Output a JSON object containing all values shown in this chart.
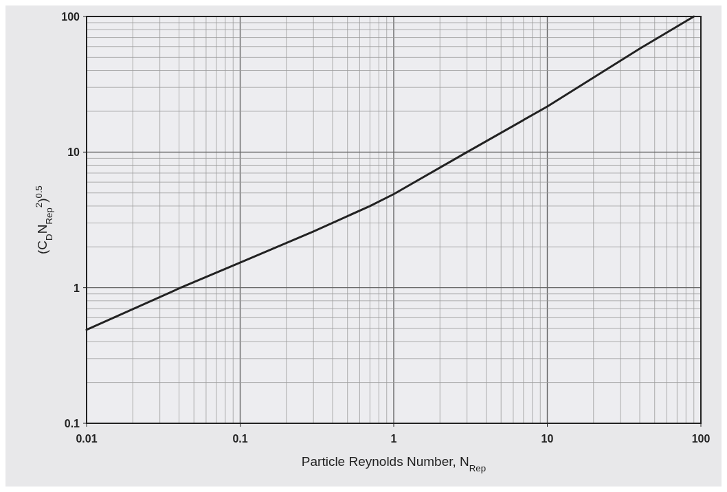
{
  "chart_data": {
    "type": "line",
    "xlabel": "Particle Reynolds Number, N$_{Rep}$",
    "ylabel": "(C$_{D}$N$_{Rep}$$^{2}$)$^{0.5}$",
    "log": "xy",
    "grid": true,
    "marker": "none",
    "line_style": "solid",
    "xlim": [
      0.01,
      100
    ],
    "ylim": [
      0.1,
      100
    ],
    "xticks": [
      0.01,
      {
        "value": 0.02,
        "label": null
      },
      {
        "value": 0.03,
        "label": null
      },
      {
        "value": 0.04,
        "label": null
      },
      {
        "value": 0.05,
        "label": null
      },
      {
        "value": 0.06,
        "label": null
      },
      {
        "value": 0.07,
        "label": null
      },
      {
        "value": 0.08,
        "label": null
      },
      {
        "value": 0.09,
        "label": null
      },
      0.1,
      {
        "value": 0.2,
        "label": null
      },
      {
        "value": 0.3,
        "label": null
      },
      {
        "value": 0.4,
        "label": null
      },
      {
        "value": 0.5,
        "label": null
      },
      {
        "value": 0.6,
        "label": null
      },
      {
        "value": 0.7,
        "label": null
      },
      {
        "value": 0.8,
        "label": null
      },
      {
        "value": 0.9,
        "label": null
      },
      1,
      {
        "value": 2,
        "label": null
      },
      {
        "value": 3,
        "label": null
      },
      {
        "value": 4,
        "label": null
      },
      {
        "value": 5,
        "label": null
      },
      {
        "value": 6,
        "label": null
      },
      {
        "value": 7,
        "label": null
      },
      {
        "value": 8,
        "label": null
      },
      {
        "value": 9,
        "label": null
      },
      10,
      {
        "value": 20,
        "label": null
      },
      {
        "value": 30,
        "label": null
      },
      {
        "value": 40,
        "label": null
      },
      {
        "value": 50,
        "label": null
      },
      {
        "value": 60,
        "label": null
      },
      {
        "value": 70,
        "label": null
      },
      {
        "value": 80,
        "label": null
      },
      {
        "value": 90,
        "label": null
      },
      100
    ],
    "yticks": [
      0.1,
      {
        "value": 0.2,
        "label": null
      },
      {
        "value": 0.3,
        "label": null
      },
      {
        "value": 0.4,
        "label": null
      },
      {
        "value": 0.5,
        "label": null
      },
      {
        "value": 0.6,
        "label": null
      },
      {
        "value": 0.7,
        "label": null
      },
      {
        "value": 0.8,
        "label": null
      },
      {
        "value": 0.9,
        "label": null
      },
      1,
      {
        "value": 2,
        "label": null
      },
      {
        "value": 3,
        "label": null
      },
      {
        "value": 4,
        "label": null
      },
      {
        "value": 5,
        "label": null
      },
      {
        "value": 6,
        "label": null
      },
      {
        "value": 7,
        "label": null
      },
      {
        "value": 8,
        "label": null
      },
      {
        "value": 9,
        "label": null
      },
      10,
      {
        "value": 20,
        "label": null
      },
      {
        "value": 30,
        "label": null
      },
      {
        "value": 40,
        "label": null
      },
      {
        "value": 50,
        "label": null
      },
      {
        "value": 60,
        "label": null
      },
      {
        "value": 70,
        "label": null
      },
      {
        "value": 80,
        "label": null
      },
      {
        "value": 90,
        "label": null
      },
      100
    ],
    "x": [
      0.01,
      0.041,
      0.1,
      0.3,
      0.7,
      1,
      3,
      10,
      40,
      90
    ],
    "series": [
      {
        "color": "#222222",
        "values": [
          0.49,
          1,
          1.53,
          2.6,
          4.0,
          4.9,
          10,
          21.7,
          58,
          100
        ]
      }
    ]
  }
}
